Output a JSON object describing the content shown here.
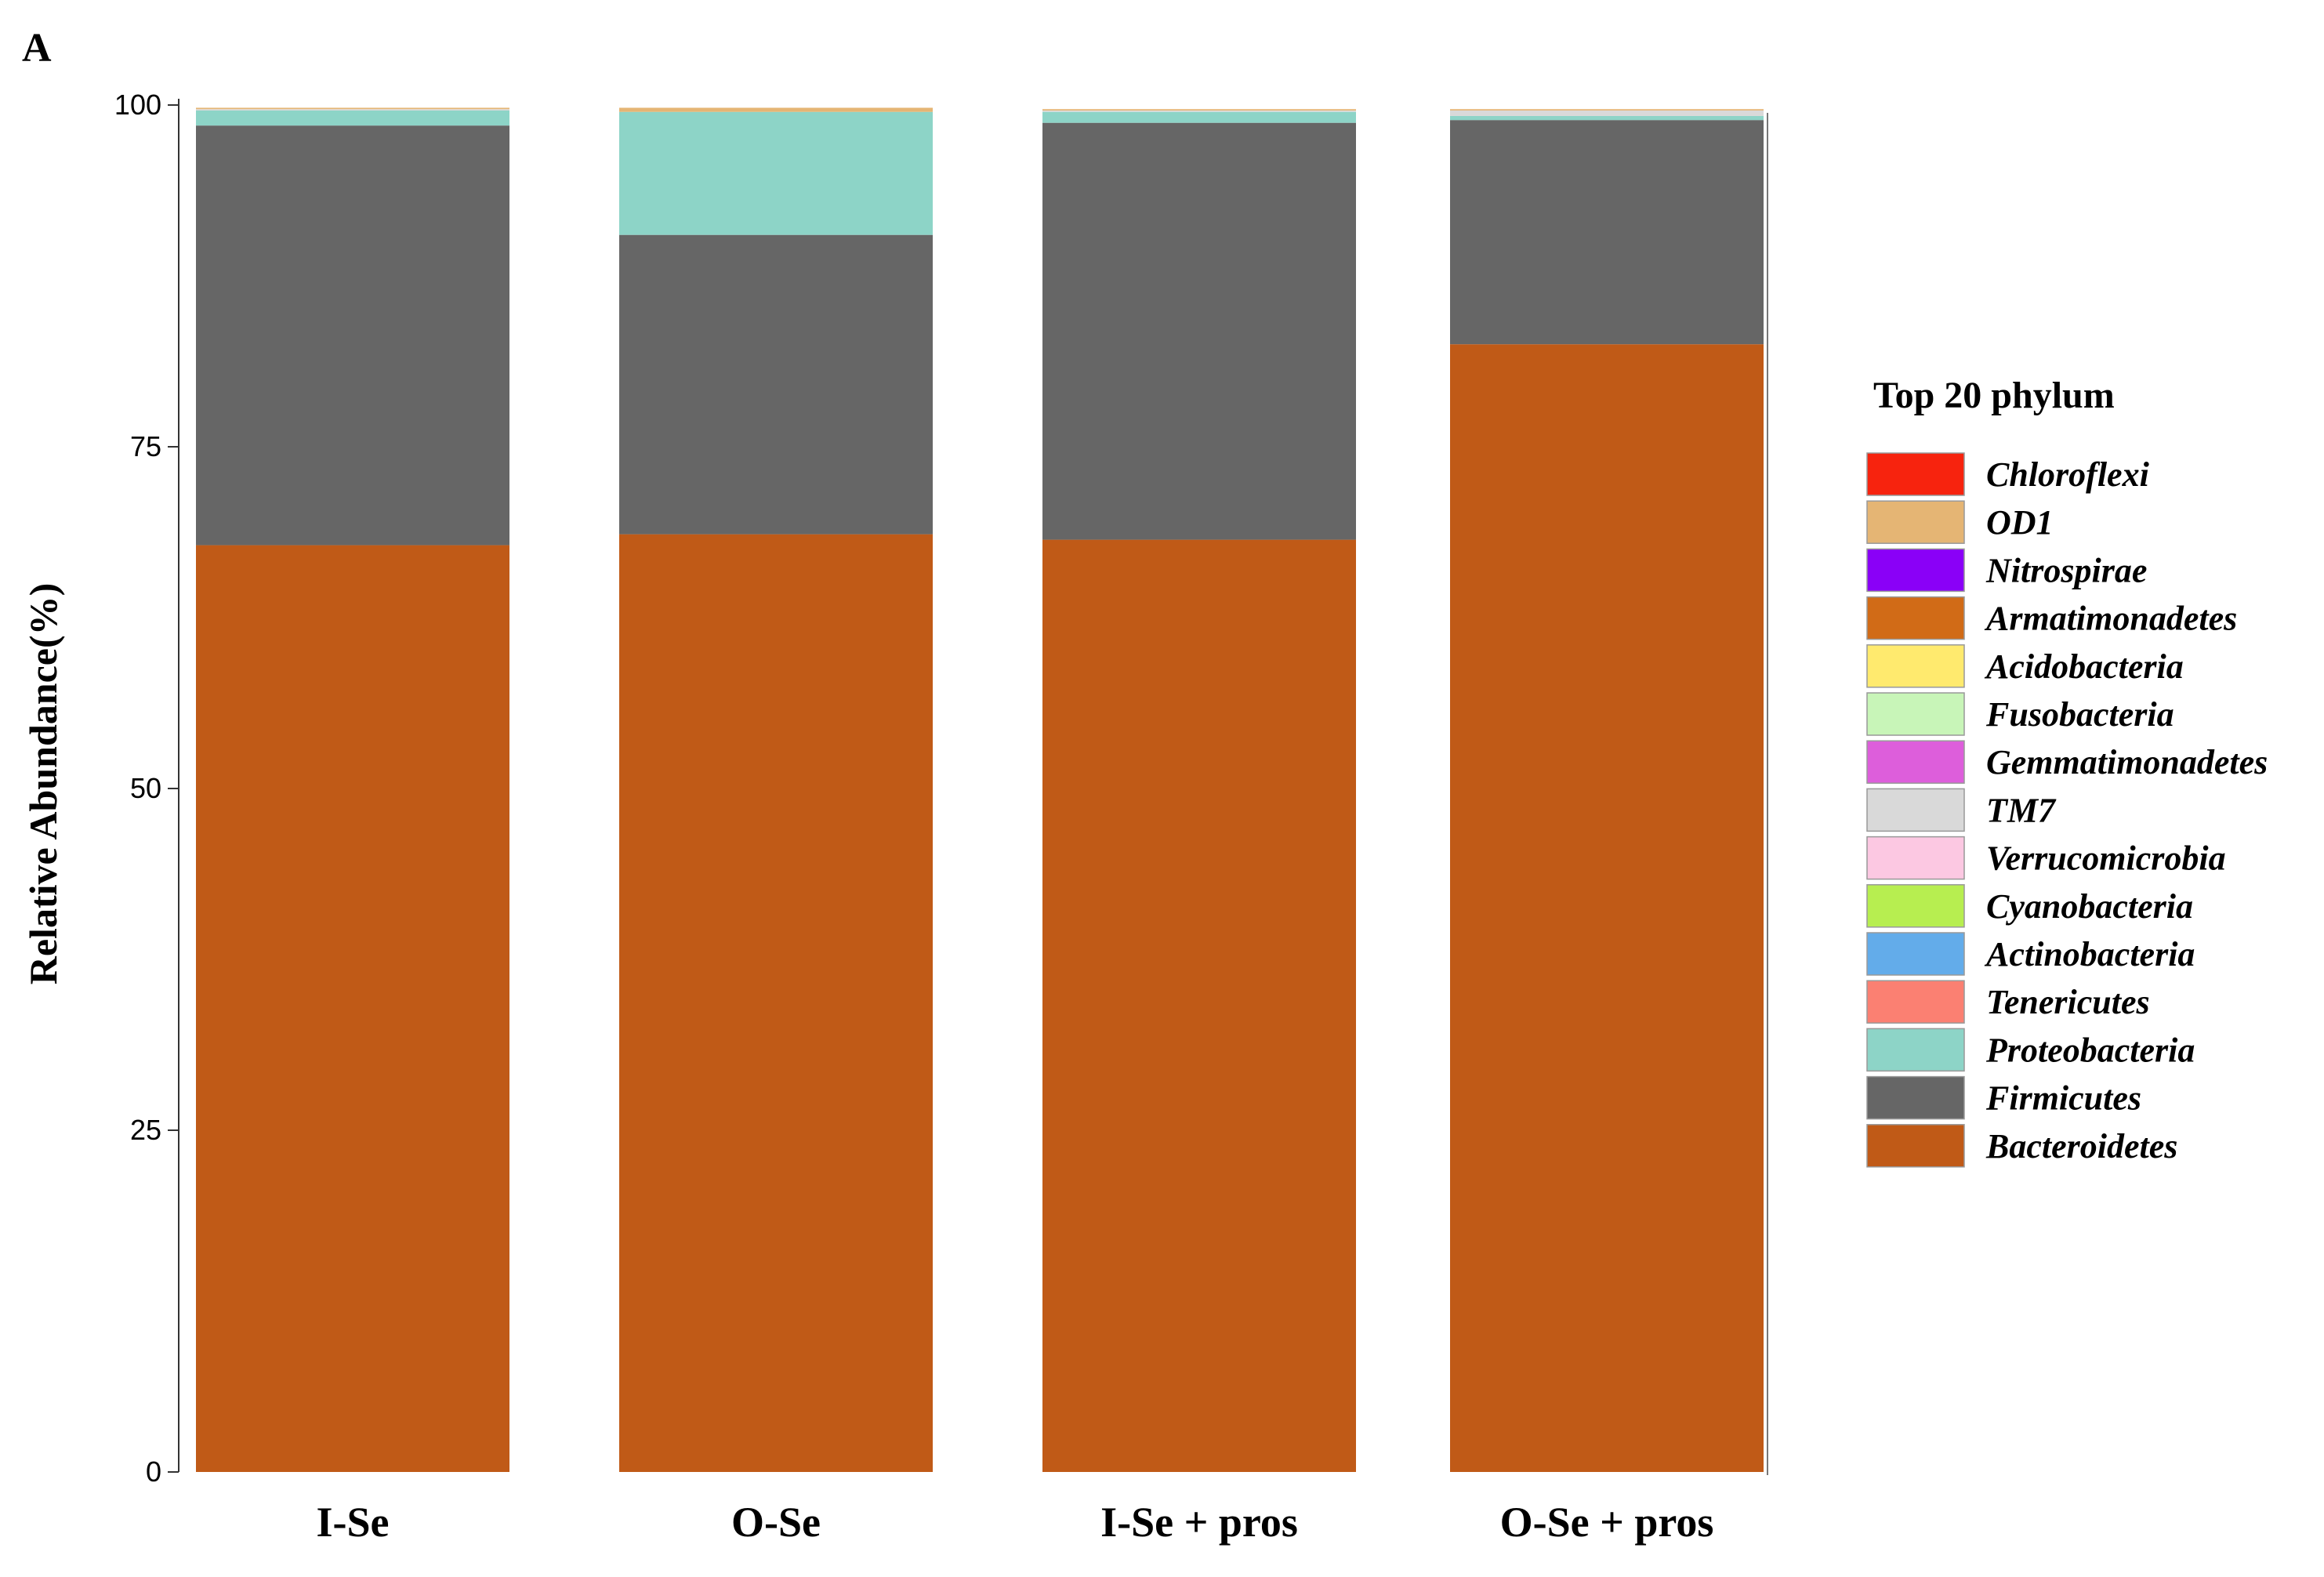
{
  "panel_label": "A",
  "chart_data": {
    "type": "bar",
    "stacked": true,
    "ylabel": "Relative Abundance(%)",
    "ylim": [
      0,
      100
    ],
    "yticks": [
      0,
      25,
      50,
      75,
      100
    ],
    "categories": [
      "I-Se",
      "O-Se",
      "I-Se + pros",
      "O-Se + pros"
    ],
    "legend": {
      "title": "Top 20 phylum",
      "placement": "right"
    },
    "series": [
      {
        "name": "Bacteroidetes",
        "color": "#C05A17",
        "values": [
          67.8,
          68.6,
          68.2,
          82.5
        ]
      },
      {
        "name": "Firmicutes",
        "color": "#666666",
        "values": [
          30.7,
          21.9,
          30.5,
          16.4
        ]
      },
      {
        "name": "Proteobacteria",
        "color": "#8DD4C7",
        "values": [
          1.1,
          9.0,
          0.8,
          0.3
        ]
      },
      {
        "name": "Tenericutes",
        "color": "#FB8072",
        "values": [
          0.0,
          0.0,
          0.0,
          0.0
        ]
      },
      {
        "name": "Actinobacteria",
        "color": "#63ACEA",
        "values": [
          0.0,
          0.0,
          0.0,
          0.0
        ]
      },
      {
        "name": "Cyanobacteria",
        "color": "#B7EE50",
        "values": [
          0.0,
          0.0,
          0.0,
          0.0
        ]
      },
      {
        "name": "Verrucomicrobia",
        "color": "#FCC8E2",
        "values": [
          0.0,
          0.0,
          0.0,
          0.0
        ]
      },
      {
        "name": "TM7",
        "color": "#D9D9D9",
        "values": [
          0.1,
          0.0,
          0.1,
          0.4
        ]
      },
      {
        "name": "Gemmatimonadetes",
        "color": "#DD5EDB",
        "values": [
          0.0,
          0.0,
          0.0,
          0.0
        ]
      },
      {
        "name": "Fusobacteria",
        "color": "#C8F5B8",
        "values": [
          0.0,
          0.0,
          0.0,
          0.0
        ]
      },
      {
        "name": "Acidobacteria",
        "color": "#FFEA6E",
        "values": [
          0.0,
          0.0,
          0.0,
          0.0
        ]
      },
      {
        "name": "Armatimonadetes",
        "color": "#D16B17",
        "values": [
          0.0,
          0.0,
          0.0,
          0.0
        ]
      },
      {
        "name": "Nitrospirae",
        "color": "#8A00F7",
        "values": [
          0.0,
          0.0,
          0.0,
          0.0
        ]
      },
      {
        "name": "OD1",
        "color": "#E5B574",
        "values": [
          0.1,
          0.3,
          0.1,
          0.1
        ]
      },
      {
        "name": "Chloroflexi",
        "color": "#F7230E",
        "values": [
          0.0,
          0.0,
          0.0,
          0.0
        ]
      }
    ]
  }
}
